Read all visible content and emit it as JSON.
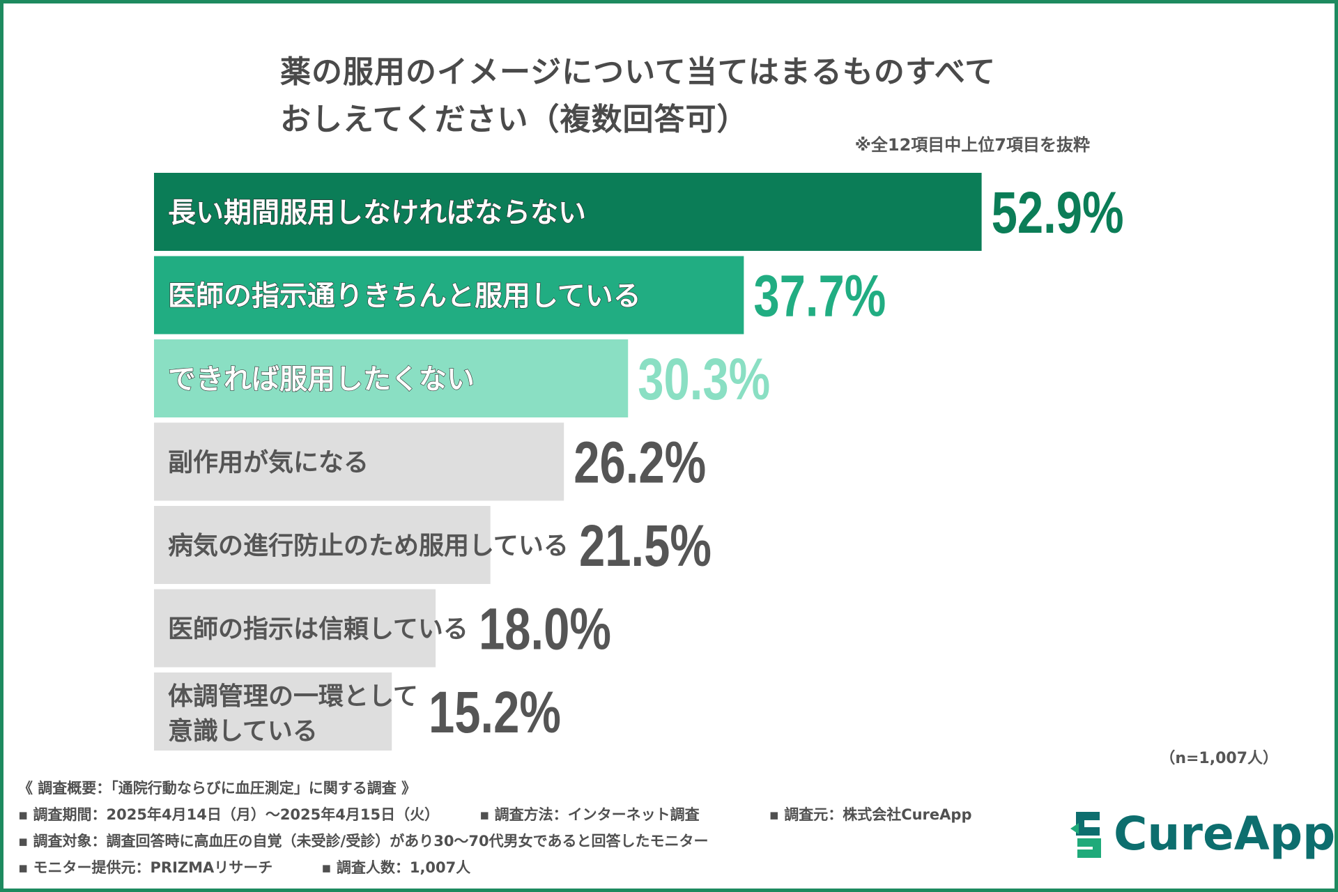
{
  "chart_data": {
    "type": "bar",
    "orientation": "horizontal",
    "title_line1": "薬の服用のイメージについて当てはまるものすべて",
    "title_line2": "おしえてください（複数回答可）",
    "note": "※全12項目中上位7項目を抜粋",
    "categories": [
      "長い期間服用しなければならない",
      "医師の指示通りきちんと服用している",
      "できれば服用したくない",
      "副作用が気になる",
      "病気の進行防止のため服用している",
      "医師の指示は信頼している",
      "体調管理の一環として意識している"
    ],
    "values": [
      52.9,
      37.7,
      30.3,
      26.2,
      21.5,
      18.0,
      15.2
    ],
    "value_labels": [
      "52.9%",
      "37.7%",
      "30.3%",
      "26.2%",
      "21.5%",
      "18.0%",
      "15.2%"
    ],
    "category_lines": [
      [
        "長い期間服用しなければならない"
      ],
      [
        "医師の指示通りきちんと服用している"
      ],
      [
        "できれば服用したくない"
      ],
      [
        "副作用が気になる"
      ],
      [
        "病気の進行防止のため服用している"
      ],
      [
        "医師の指示は信頼している"
      ],
      [
        "体調管理の一環として",
        "意識している"
      ]
    ],
    "bar_colors": [
      "#0b7d57",
      "#21ad82",
      "#8adfc3",
      "#dedede",
      "#dedede",
      "#dedede",
      "#dedede"
    ],
    "value_colors": [
      "#0b7d57",
      "#21ad82",
      "#8adfc3",
      "#555555",
      "#555555",
      "#555555",
      "#555555"
    ],
    "label_colors": [
      "#ffffff",
      "#ffffff",
      "#ffffff",
      "#555555",
      "#555555",
      "#555555",
      "#555555"
    ],
    "xlim": [
      0,
      100
    ],
    "grid": false,
    "sample_note": "（n=1,007人）"
  },
  "footer": {
    "overview": "《 調査概要：「通院行動ならびに血圧測定」に関する調査 》",
    "period": "▪ 調査期間：2025年4月14日（月）～2025年4月15日（火）",
    "method": "▪ 調査方法：インターネット調査",
    "source": "▪ 調査元：株式会社CureApp",
    "target": "▪ 調査対象：調査回答時に高血圧の自覚（未受診/受診）があり30～70代男女であると回答したモニター",
    "provider": "▪ モニター提供元：PRIZMAリサーチ",
    "count": "▪ 調査人数：1,007人"
  },
  "logo": {
    "text": "CureApp",
    "color": "#0d6e6e"
  }
}
